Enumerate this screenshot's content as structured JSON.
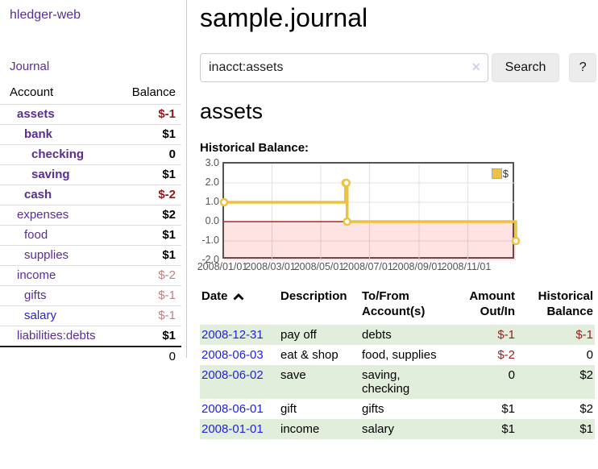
{
  "app": {
    "title": "hledger-web"
  },
  "nav": {
    "journal_label": "Journal"
  },
  "sidebar": {
    "account_header": "Account",
    "balance_header": "Balance",
    "accounts": [
      {
        "name": "assets",
        "level": 1,
        "bold": true,
        "balance": "$-1",
        "balance_class": "neg-dark"
      },
      {
        "name": "bank",
        "level": 2,
        "bold": true,
        "balance": "$1",
        "balance_class": "pos"
      },
      {
        "name": "checking",
        "level": 3,
        "bold": true,
        "balance": "0",
        "balance_class": "pos"
      },
      {
        "name": "saving",
        "level": 3,
        "bold": true,
        "balance": "$1",
        "balance_class": "pos"
      },
      {
        "name": "cash",
        "level": 2,
        "bold": true,
        "balance": "$-2",
        "balance_class": "neg-dark"
      },
      {
        "name": "expenses",
        "level": 1,
        "bold": false,
        "balance": "$2",
        "balance_class": "pos"
      },
      {
        "name": "food",
        "level": 2,
        "bold": false,
        "balance": "$1",
        "balance_class": "pos"
      },
      {
        "name": "supplies",
        "level": 2,
        "bold": false,
        "balance": "$1",
        "balance_class": "pos"
      },
      {
        "name": "income",
        "level": 1,
        "bold": false,
        "balance": "$-2",
        "balance_class": "neg-soft"
      },
      {
        "name": "gifts",
        "level": 2,
        "bold": false,
        "balance": "$-1",
        "balance_class": "neg-soft"
      },
      {
        "name": "salary",
        "level": 2,
        "bold": false,
        "balance": "$-1",
        "balance_class": "neg-soft",
        "link_class": "blue"
      },
      {
        "name": "liabilities:debts",
        "level": 1,
        "bold": false,
        "balance": "$1",
        "balance_class": "pos"
      }
    ],
    "total": "0"
  },
  "header": {
    "title": "sample.journal"
  },
  "search": {
    "value": "inacct:assets",
    "clear_icon": "✕",
    "button_label": "Search",
    "help_label": "?"
  },
  "account_page": {
    "title": "assets",
    "chart_label": "Historical Balance:"
  },
  "chart_data": {
    "type": "line",
    "style": "step-after",
    "title": "Historical Balance:",
    "series": [
      {
        "name": "$",
        "color": "#EDC240",
        "points": [
          [
            "2008-01-01",
            1
          ],
          [
            "2008-06-01",
            2
          ],
          [
            "2008-06-02",
            2
          ],
          [
            "2008-06-03",
            0
          ],
          [
            "2008-12-31",
            -1
          ]
        ]
      }
    ],
    "x_range": [
      "2008-01-01",
      "2008-12-31"
    ],
    "x_tick_dates": [
      "2008-01-01",
      "2008-03-01",
      "2008-05-01",
      "2008-07-01",
      "2008-09-01",
      "2008-11-01"
    ],
    "x_ticks": [
      "2008/01/01",
      "2008/03/01",
      "2008/05/01",
      "2008/07/01",
      "2008/09/01",
      "2008/11/01"
    ],
    "ylim": [
      -2,
      3
    ],
    "y_ticks": [
      3,
      2,
      1,
      0,
      -1,
      -2
    ],
    "y_tick_labels": [
      "3.0",
      "2.0",
      "1.0",
      "0.0",
      "-1.0",
      "-2.0"
    ],
    "grid": true,
    "grid_color": "#e0e0e0",
    "negative_fill": "rgba(255,0,0,0.11)",
    "zero_line_color": "#990000",
    "legend": {
      "label": "$",
      "position": "top-right",
      "swatch_color": "#EDC240"
    }
  },
  "register": {
    "columns": [
      "Date",
      "Description",
      "To/From Account(s)",
      "Amount Out/In",
      "Historical Balance"
    ],
    "rows": [
      {
        "date": "2008-12-31",
        "description": "pay off",
        "accounts": "debts",
        "amount": "$-1",
        "amount_class": "neg",
        "balance": "$-1",
        "balance_class": "neg"
      },
      {
        "date": "2008-06-03",
        "description": "eat & shop",
        "accounts": "food, supplies",
        "amount": "$-2",
        "amount_class": "neg",
        "balance": "0",
        "balance_class": "pos"
      },
      {
        "date": "2008-06-02",
        "description": "save",
        "accounts": "saving,\nchecking",
        "amount": "0",
        "amount_class": "pos",
        "balance": "$2",
        "balance_class": "pos"
      },
      {
        "date": "2008-06-01",
        "description": "gift",
        "accounts": "gifts",
        "amount": "$1",
        "amount_class": "pos",
        "balance": "$2",
        "balance_class": "pos"
      },
      {
        "date": "2008-01-01",
        "description": "income",
        "accounts": "salary",
        "amount": "$1",
        "amount_class": "pos",
        "balance": "$1",
        "balance_class": "pos"
      }
    ]
  }
}
